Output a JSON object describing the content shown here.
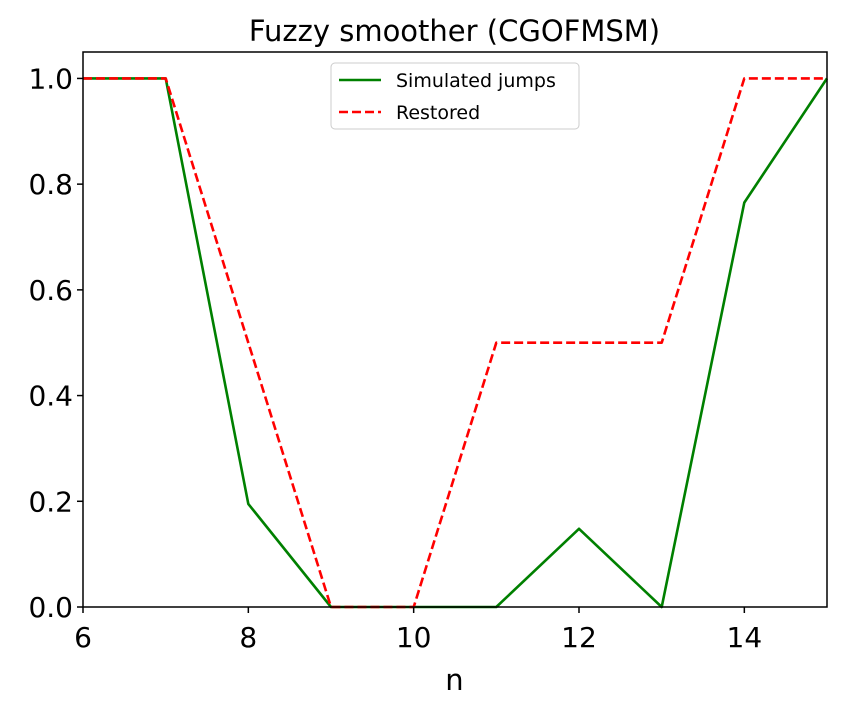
{
  "chart_data": {
    "type": "line",
    "title": "Fuzzy smoother (CGOFMSM)",
    "xlabel": "n",
    "ylabel": "",
    "xlim": [
      6,
      15
    ],
    "ylim": [
      0,
      1.05
    ],
    "xticks": [
      6,
      8,
      10,
      12,
      14
    ],
    "xtick_labels": [
      "6",
      "8",
      "10",
      "12",
      "14"
    ],
    "yticks": [
      0,
      0.2,
      0.4,
      0.6,
      0.8,
      1.0
    ],
    "ytick_labels": [
      "0.0",
      "0.2",
      "0.4",
      "0.6",
      "0.8",
      "1.0"
    ],
    "grid": false,
    "legend_position": "top-center",
    "x": [
      6,
      7,
      8,
      9,
      10,
      11,
      12,
      13,
      14,
      15
    ],
    "series": [
      {
        "name": "Simulated jumps",
        "values": [
          1.0,
          1.0,
          0.195,
          0.0,
          0.0,
          0.0,
          0.148,
          0.0,
          0.765,
          1.0
        ],
        "color": "#008000",
        "style": "solid"
      },
      {
        "name": "Restored",
        "values": [
          1.0,
          1.0,
          0.5,
          0.0,
          0.0,
          0.5,
          0.5,
          0.5,
          1.0,
          1.0
        ],
        "color": "#ff0000",
        "style": "dashed"
      }
    ]
  }
}
